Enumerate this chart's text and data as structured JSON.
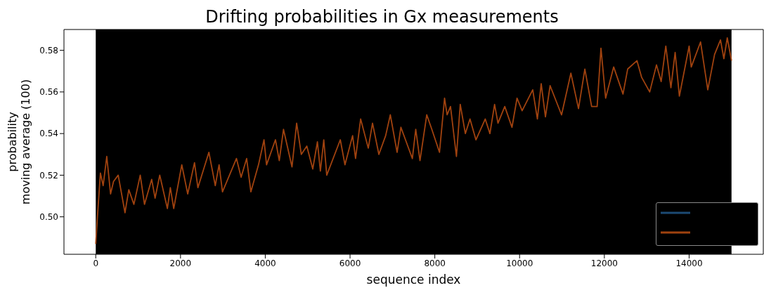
{
  "chart_data": {
    "type": "line",
    "title": "Drifting probabilities in Gx measurements",
    "xlabel": "sequence index",
    "ylabel": "probability\nmoving average (100)",
    "xlim": [
      -750,
      15750
    ],
    "ylim": [
      0.482,
      0.59
    ],
    "xticks": [
      0,
      2000,
      4000,
      6000,
      8000,
      10000,
      12000,
      14000
    ],
    "yticks": [
      {
        "value": 0.5,
        "label": "0.50"
      },
      {
        "value": 0.52,
        "label": "0.52"
      },
      {
        "value": 0.54,
        "label": "0.54"
      },
      {
        "value": 0.56,
        "label": "0.56"
      },
      {
        "value": 0.58,
        "label": "0.58"
      }
    ],
    "grid": false,
    "marker": "none",
    "line_style": "solid",
    "bands": [
      {
        "axis": "x",
        "from": 0,
        "to": 15000,
        "color": "#000000"
      }
    ],
    "series": [
      {
        "color": "#a0420f",
        "x": [
          0,
          40,
          110,
          175,
          260,
          350,
          420,
          530,
          690,
          780,
          900,
          1050,
          1150,
          1320,
          1400,
          1510,
          1690,
          1760,
          1840,
          2030,
          2170,
          2330,
          2410,
          2670,
          2820,
          2910,
          2990,
          3320,
          3430,
          3560,
          3660,
          3840,
          3970,
          4030,
          4240,
          4330,
          4430,
          4630,
          4740,
          4850,
          4980,
          5120,
          5230,
          5300,
          5380,
          5450,
          5770,
          5880,
          6060,
          6130,
          6250,
          6430,
          6530,
          6680,
          6840,
          6950,
          7110,
          7200,
          7470,
          7550,
          7650,
          7810,
          7930,
          8110,
          8230,
          8290,
          8370,
          8510,
          8600,
          8720,
          8830,
          8970,
          9190,
          9300,
          9410,
          9490,
          9650,
          9820,
          9940,
          10060,
          10310,
          10420,
          10510,
          10610,
          10720,
          10990,
          11210,
          11390,
          11540,
          11700,
          11830,
          11920,
          12030,
          12220,
          12440,
          12550,
          12770,
          12880,
          13070,
          13230,
          13340,
          13450,
          13570,
          13670,
          13770,
          14000,
          14050,
          14270,
          14440,
          14600,
          14740,
          14820,
          14900,
          15000
        ],
        "values": [
          0.487,
          0.5,
          0.521,
          0.515,
          0.529,
          0.511,
          0.517,
          0.52,
          0.502,
          0.513,
          0.506,
          0.52,
          0.506,
          0.518,
          0.509,
          0.52,
          0.504,
          0.514,
          0.504,
          0.525,
          0.511,
          0.526,
          0.514,
          0.531,
          0.515,
          0.525,
          0.512,
          0.528,
          0.519,
          0.528,
          0.512,
          0.525,
          0.537,
          0.525,
          0.537,
          0.527,
          0.542,
          0.524,
          0.545,
          0.53,
          0.534,
          0.523,
          0.536,
          0.522,
          0.537,
          0.52,
          0.537,
          0.525,
          0.539,
          0.528,
          0.547,
          0.533,
          0.545,
          0.53,
          0.539,
          0.549,
          0.531,
          0.543,
          0.528,
          0.542,
          0.527,
          0.549,
          0.542,
          0.531,
          0.557,
          0.549,
          0.553,
          0.529,
          0.554,
          0.54,
          0.547,
          0.537,
          0.547,
          0.54,
          0.554,
          0.545,
          0.553,
          0.543,
          0.557,
          0.551,
          0.561,
          0.547,
          0.564,
          0.548,
          0.563,
          0.549,
          0.569,
          0.552,
          0.571,
          0.553,
          0.553,
          0.581,
          0.557,
          0.572,
          0.559,
          0.571,
          0.575,
          0.567,
          0.56,
          0.573,
          0.565,
          0.582,
          0.562,
          0.579,
          0.558,
          0.582,
          0.572,
          0.584,
          0.561,
          0.578,
          0.585,
          0.576,
          0.586,
          0.575
        ]
      }
    ]
  }
}
